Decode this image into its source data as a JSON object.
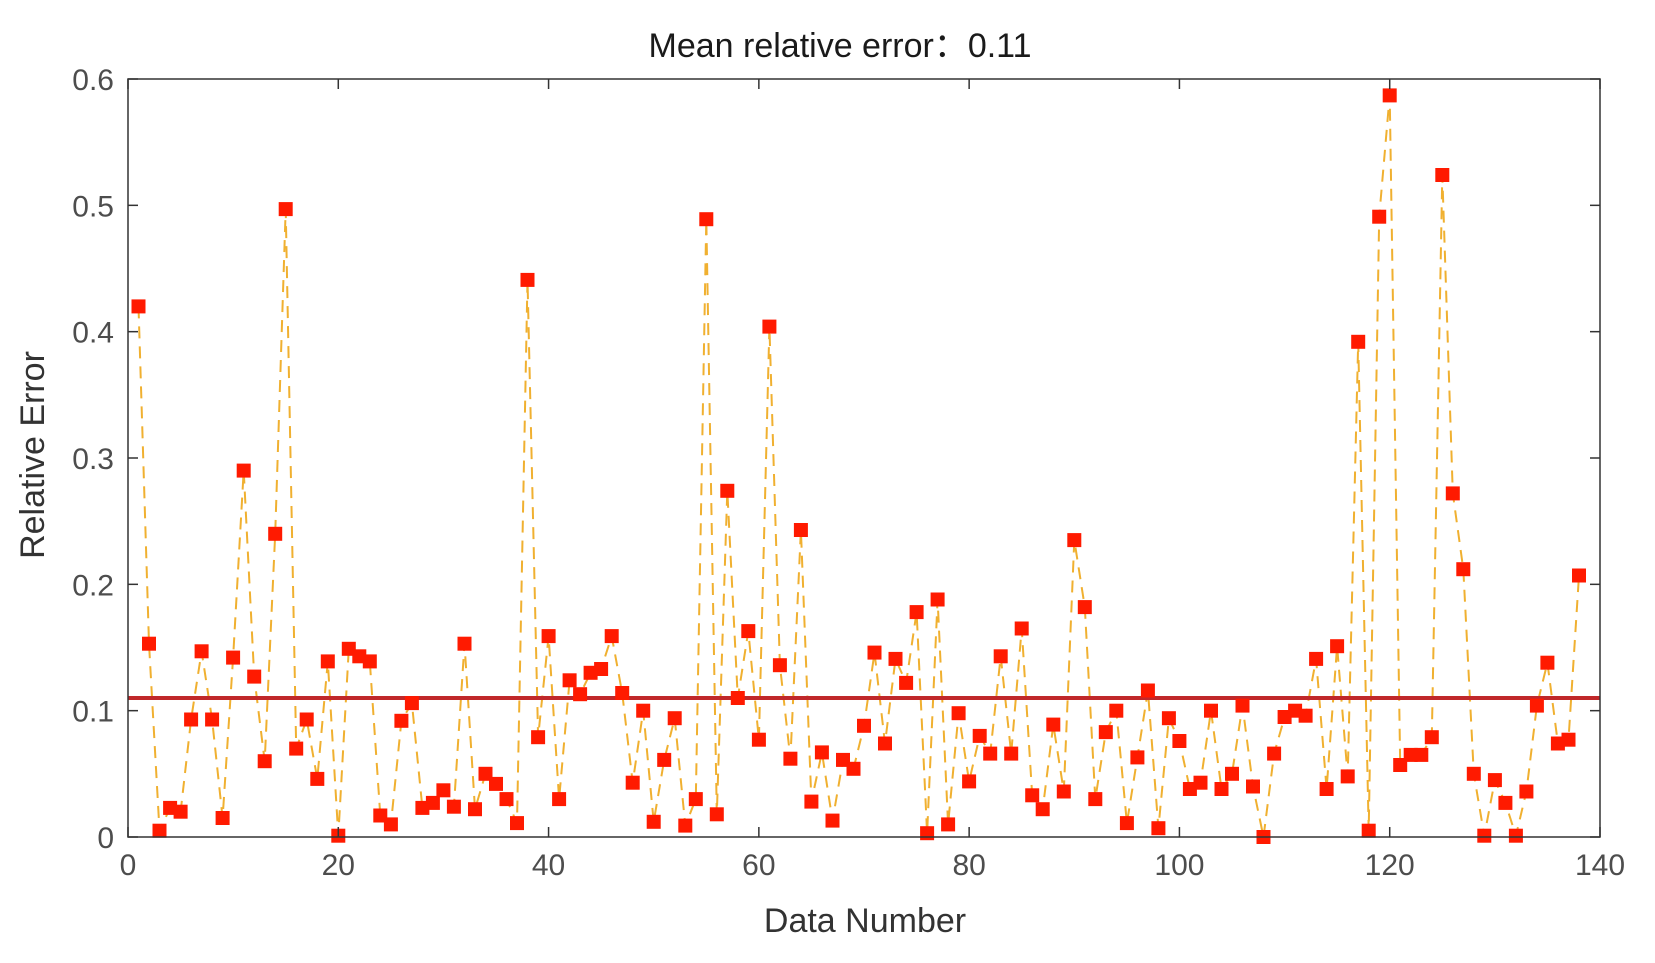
{
  "chart_data": {
    "type": "scatter",
    "title": "Mean relative error：0.11",
    "xlabel": "Data Number",
    "ylabel": "Relative Error",
    "xlim": [
      0,
      140
    ],
    "ylim": [
      0,
      0.6
    ],
    "xticks": [
      "0",
      "20",
      "40",
      "60",
      "80",
      "100",
      "120",
      "140"
    ],
    "yticks": [
      "0",
      "0.1",
      "0.2",
      "0.3",
      "0.4",
      "0.5",
      "0.6"
    ],
    "grid": false,
    "mean_line": 0.11,
    "colors": {
      "marker": "#ff1a00",
      "connector": "#f0b030",
      "mean_line": "#c0282a",
      "axis": "#333333"
    },
    "series": [
      {
        "marker": "square",
        "line_style": "dashed",
        "x": [
          1,
          2,
          3,
          4,
          5,
          6,
          7,
          8,
          9,
          10,
          11,
          12,
          13,
          14,
          15,
          16,
          17,
          18,
          19,
          20,
          21,
          22,
          23,
          24,
          25,
          26,
          27,
          28,
          29,
          30,
          31,
          32,
          33,
          34,
          35,
          36,
          37,
          38,
          39,
          40,
          41,
          42,
          43,
          44,
          45,
          46,
          47,
          48,
          49,
          50,
          51,
          52,
          53,
          54,
          55,
          56,
          57,
          58,
          59,
          60,
          61,
          62,
          63,
          64,
          65,
          66,
          67,
          68,
          69,
          70,
          71,
          72,
          73,
          74,
          75,
          76,
          77,
          78,
          79,
          80,
          81,
          82,
          83,
          84,
          85,
          86,
          87,
          88,
          89,
          90,
          91,
          92,
          93,
          94,
          95,
          96,
          97,
          98,
          99,
          100,
          101,
          102,
          103,
          104,
          105,
          106,
          107,
          108,
          109,
          110,
          111,
          112,
          113,
          114,
          115,
          116,
          117,
          118,
          119,
          120,
          121,
          122,
          123,
          124,
          125,
          126,
          127,
          128,
          129,
          130,
          131,
          132,
          133,
          134,
          135,
          136,
          137,
          138
        ],
        "y": [
          0.42,
          0.153,
          0.005,
          0.023,
          0.02,
          0.093,
          0.147,
          0.093,
          0.015,
          0.142,
          0.29,
          0.127,
          0.06,
          0.24,
          0.497,
          0.07,
          0.093,
          0.046,
          0.139,
          0.001,
          0.149,
          0.143,
          0.139,
          0.017,
          0.01,
          0.092,
          0.106,
          0.023,
          0.027,
          0.037,
          0.024,
          0.153,
          0.022,
          0.05,
          0.042,
          0.03,
          0.011,
          0.441,
          0.079,
          0.159,
          0.03,
          0.124,
          0.113,
          0.13,
          0.133,
          0.159,
          0.114,
          0.043,
          0.1,
          0.012,
          0.061,
          0.094,
          0.009,
          0.03,
          0.489,
          0.018,
          0.274,
          0.11,
          0.163,
          0.077,
          0.404,
          0.136,
          0.062,
          0.243,
          0.028,
          0.067,
          0.013,
          0.061,
          0.054,
          0.088,
          0.146,
          0.074,
          0.141,
          0.122,
          0.178,
          0.003,
          0.188,
          0.01,
          0.098,
          0.044,
          0.08,
          0.066,
          0.143,
          0.066,
          0.165,
          0.033,
          0.022,
          0.089,
          0.036,
          0.235,
          0.182,
          0.03,
          0.083,
          0.1,
          0.011,
          0.063,
          0.116,
          0.007,
          0.094,
          0.076,
          0.038,
          0.043,
          0.1,
          0.038,
          0.05,
          0.104,
          0.04,
          0.0,
          0.066,
          0.095,
          0.1,
          0.096,
          0.141,
          0.038,
          0.151,
          0.048,
          0.392,
          0.005,
          0.491,
          0.587,
          0.057,
          0.065,
          0.065,
          0.079,
          0.524,
          0.272,
          0.212,
          0.05,
          0.001,
          0.045,
          0.027,
          0.001,
          0.036,
          0.104,
          0.138,
          0.074,
          0.077,
          0.207
        ]
      }
    ]
  }
}
